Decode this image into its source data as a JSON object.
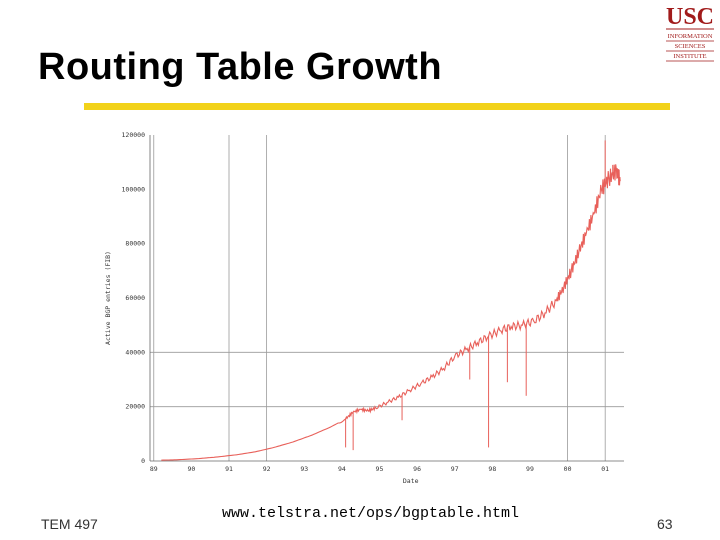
{
  "slide": {
    "title": "Routing Table Growth",
    "footer_left": "TEM 497",
    "footer_url": "www.telstra.net/ops/bgptable.html",
    "page_number": "63",
    "accent_color": "#f2d21a"
  },
  "logo": {
    "text_main": "USC",
    "line1": "INFORMATION",
    "line2": "SCIENCES",
    "line3": "INSTITUTE",
    "color": "#a11b1b"
  },
  "chart_data": {
    "type": "line",
    "title": "",
    "xlabel": "Date",
    "ylabel": "Active BGP entries (FIB)",
    "x_tick_labels": [
      "89",
      "90",
      "91",
      "92",
      "93",
      "94",
      "95",
      "96",
      "97",
      "98",
      "99",
      "00",
      "01"
    ],
    "y_tick_labels": [
      "0",
      "20000",
      "40000",
      "60000",
      "80000",
      "100000",
      "120000"
    ],
    "xlim": [
      1989.0,
      2001.6
    ],
    "ylim": [
      0,
      120000
    ],
    "grid": "vertical at years 89, 91, 92, 00, 01; horizontal at 20000, 40000",
    "series": [
      {
        "color": "#e8605a",
        "x": [
          1989.3,
          1989.8,
          1990.3,
          1990.8,
          1991.3,
          1991.8,
          1992.3,
          1992.8,
          1993.3,
          1993.8,
          1994.2,
          1994.4,
          1994.6,
          1994.8,
          1995.0,
          1995.3,
          1995.6,
          1995.9,
          1996.2,
          1996.5,
          1996.8,
          1997.1,
          1997.4,
          1997.7,
          1998.0,
          1998.3,
          1998.6,
          1998.9,
          1999.2,
          1999.5,
          1999.8,
          2000.0,
          2000.2,
          2000.4,
          2000.6,
          2000.8,
          2001.0,
          2001.2,
          2001.4,
          2001.5
        ],
        "y": [
          300,
          500,
          900,
          1500,
          2300,
          3400,
          5000,
          7000,
          9500,
          12500,
          15500,
          18000,
          19000,
          18500,
          19500,
          21500,
          23500,
          26000,
          28500,
          31000,
          34000,
          38500,
          41000,
          43500,
          46000,
          48000,
          49500,
          50000,
          51500,
          54500,
          59000,
          64000,
          70000,
          77000,
          84000,
          91000,
          100000,
          104000,
          107000,
          103000
        ]
      }
    ],
    "spikes": [
      {
        "x": 1994.2,
        "y": 5000
      },
      {
        "x": 1994.4,
        "y": 4000
      },
      {
        "x": 1995.7,
        "y": 15000
      },
      {
        "x": 1997.5,
        "y": 30000
      },
      {
        "x": 1998.0,
        "y": 5000
      },
      {
        "x": 1998.5,
        "y": 29000
      },
      {
        "x": 1999.0,
        "y": 24000
      },
      {
        "x": 2001.1,
        "y": 118000
      },
      {
        "x": 2001.3,
        "y": 109000
      }
    ]
  }
}
